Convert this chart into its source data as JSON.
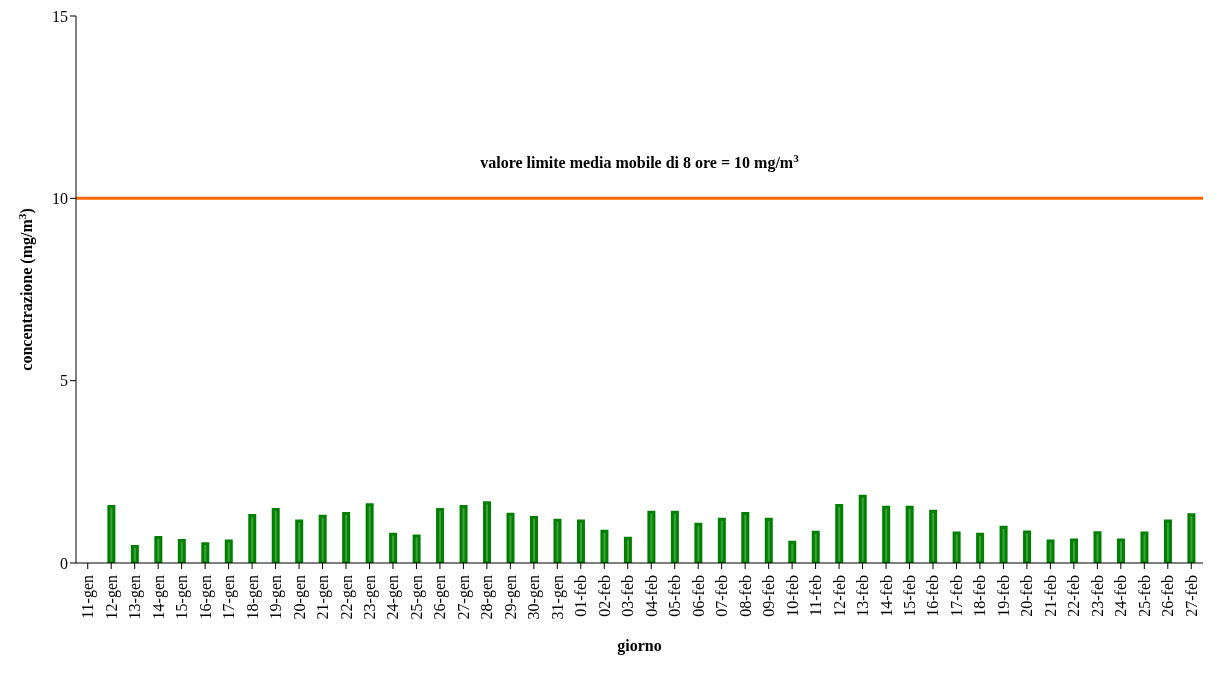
{
  "chart_data": {
    "type": "bar",
    "xlabel": "giorno",
    "ylabel": "concentrazione (mg/m$^{3}$)",
    "categories": [
      "11-gen",
      "12-gen",
      "13-gen",
      "14-gen",
      "15-gen",
      "16-gen",
      "17-gen",
      "18-gen",
      "19-gen",
      "20-gen",
      "21-gen",
      "22-gen",
      "23-gen",
      "24-gen",
      "25-gen",
      "26-gen",
      "27-gen",
      "28-gen",
      "29-gen",
      "30-gen",
      "31-gen",
      "01-feb",
      "02-feb",
      "03-feb",
      "04-feb",
      "05-feb",
      "06-feb",
      "07-feb",
      "08-feb",
      "09-feb",
      "10-feb",
      "11-feb",
      "12-feb",
      "13-feb",
      "14-feb",
      "15-feb",
      "16-feb",
      "17-feb",
      "18-feb",
      "19-feb",
      "20-feb",
      "21-feb",
      "22-feb",
      "23-feb",
      "24-feb",
      "25-feb",
      "26-feb",
      "27-feb"
    ],
    "series": [
      {
        "color": "#008000",
        "values": [
          null,
          1.55,
          0.45,
          0.7,
          0.62,
          0.53,
          0.6,
          1.3,
          1.47,
          1.15,
          1.28,
          1.36,
          1.6,
          0.79,
          0.74,
          1.47,
          1.55,
          1.65,
          1.34,
          1.25,
          1.17,
          1.15,
          0.87,
          0.68,
          1.39,
          1.39,
          1.06,
          1.2,
          1.36,
          1.2,
          0.57,
          0.84,
          1.58,
          1.83,
          1.53,
          1.53,
          1.42,
          0.82,
          0.79,
          0.98,
          0.85,
          0.6,
          0.63,
          0.83,
          0.63,
          0.82,
          1.15,
          1.32
        ]
      }
    ],
    "ylim": [
      0,
      15
    ],
    "yticks": [
      0,
      5,
      10,
      15
    ],
    "grid": false,
    "legend": false,
    "ref_lines": [
      {
        "axis": "y",
        "value": 10,
        "label": "valore limite media mobile di 8 ore = 10 mg/m$^{3}$",
        "color": "#ff6600"
      }
    ]
  }
}
